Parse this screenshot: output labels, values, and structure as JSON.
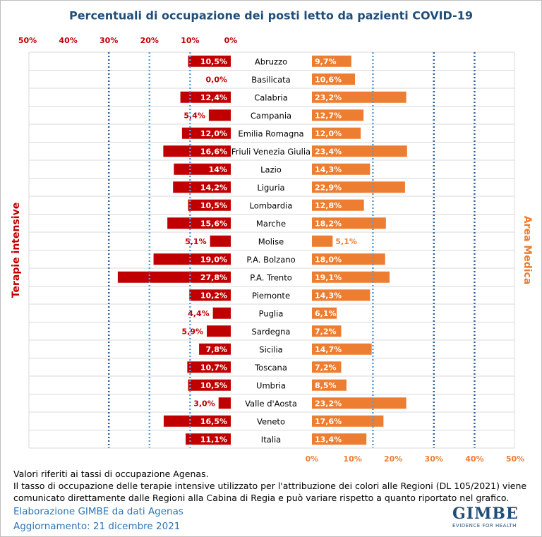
{
  "chart_data": {
    "type": "butterfly",
    "title": "Percentuali di occupazione dei posti letto da pazienti COVID-19",
    "categories": [
      "Abruzzo",
      "Basilicata",
      "Calabria",
      "Campania",
      "Emilia Romagna",
      "Friuli Venezia Giulia",
      "Lazio",
      "Liguria",
      "Lombardia",
      "Marche",
      "Molise",
      "P.A. Bolzano",
      "P.A. Trento",
      "Piemonte",
      "Puglia",
      "Sardegna",
      "Sicilia",
      "Toscana",
      "Umbria",
      "Valle d'Aosta",
      "Veneto",
      "Italia"
    ],
    "xlim": [
      0,
      50
    ],
    "xticks": [
      {
        "value": 0,
        "label": "0%"
      },
      {
        "value": 10,
        "label": "10%"
      },
      {
        "value": 20,
        "label": "20%"
      },
      {
        "value": 30,
        "label": "30%"
      },
      {
        "value": 40,
        "label": "40%"
      },
      {
        "value": 50,
        "label": "50%"
      }
    ],
    "series": [
      {
        "name": "Terapie intensive",
        "color": "#c00000",
        "side": "left",
        "values": [
          10.5,
          0.0,
          12.4,
          5.4,
          12.0,
          16.6,
          14,
          14.2,
          10.5,
          15.6,
          5.1,
          19.0,
          27.8,
          10.2,
          4.4,
          5.9,
          7.8,
          10.7,
          10.5,
          3.0,
          16.5,
          11.1
        ],
        "value_labels": [
          "10,5%",
          "0,0%",
          "12,4%",
          "5,4%",
          "12,0%",
          "16,6%",
          "14%",
          "14,2%",
          "10,5%",
          "15,6%",
          "5,1%",
          "19,0%",
          "27,8%",
          "10,2%",
          "4,4%",
          "5,9%",
          "7,8%",
          "10,7%",
          "10,5%",
          "3,0%",
          "16,5%",
          "11,1%"
        ],
        "thresholds": [
          {
            "value": 10,
            "color": "#5b9bd5"
          },
          {
            "value": 20,
            "color": "#5b9bd5"
          },
          {
            "value": 30,
            "color": "#2e5fa3"
          }
        ]
      },
      {
        "name": "Area Medica",
        "color": "#ed7d31",
        "side": "right",
        "values": [
          9.7,
          10.6,
          23.2,
          12.7,
          12.0,
          23.4,
          14.3,
          22.9,
          12.8,
          18.2,
          5.1,
          18.0,
          19.1,
          14.3,
          6.1,
          7.2,
          14.7,
          7.2,
          8.5,
          23.2,
          17.6,
          13.4
        ],
        "value_labels": [
          "9,7%",
          "10,6%",
          "23,2%",
          "12,7%",
          "12,0%",
          "23,4%",
          "14,3%",
          "22,9%",
          "12,8%",
          "18,2%",
          "5,1%",
          "18,0%",
          "19,1%",
          "14,3%",
          "6,1%",
          "7,2%",
          "14,7%",
          "7,2%",
          "8,5%",
          "23,2%",
          "17,6%",
          "13,4%"
        ],
        "thresholds": [
          {
            "value": 15,
            "color": "#5b9bd5"
          },
          {
            "value": 30,
            "color": "#2e5fa3"
          },
          {
            "value": 40,
            "color": "#2e5fa3"
          }
        ]
      }
    ]
  },
  "footer": {
    "notes": [
      "Valori riferiti ai tassi di occupazione Agenas.",
      "Il tasso di occupazione delle terapie intensive utilizzato per l'attribuzione dei colori alle Regioni (DL 105/2021) viene comunicato direttamente dalle Regioni alla Cabina di Regia e può variare rispetto a quanto riportato nel grafico."
    ],
    "source": "Elaborazione GIMBE da dati Agenas",
    "updated": "Aggiornamento: 21 dicembre 2021",
    "logo": "GIMBE",
    "logo_tagline": "EVIDENCE FOR HEALTH"
  }
}
